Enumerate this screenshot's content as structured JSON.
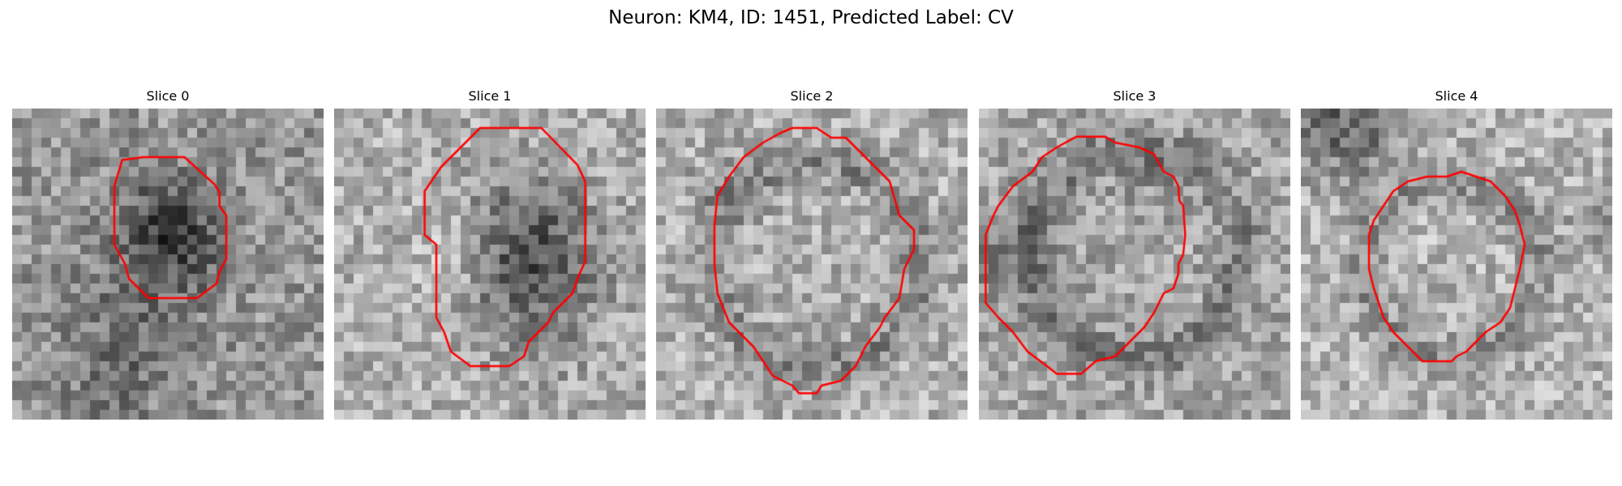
{
  "figure": {
    "suptitle": "Neuron: KM4, ID: 1451, Predicted Label: CV",
    "contour_color": "#ff0000",
    "colormap": "gray",
    "panels": [
      {
        "title": "Slice 0",
        "description": "grayscale noisy patch with small dark blob, red contour outlining dark region upper-center"
      },
      {
        "title": "Slice 1",
        "description": "grayscale patch with large dark blob lower-center-right, bright area left, large red contour"
      },
      {
        "title": "Slice 2",
        "description": "grayscale patch with ring-like darker boundary, round red contour"
      },
      {
        "title": "Slice 3",
        "description": "grayscale patch with dark ring boundary, octagonal red contour"
      },
      {
        "title": "Slice 4",
        "description": "grayscale patch with dark corner top-left, medium round red contour"
      }
    ]
  }
}
